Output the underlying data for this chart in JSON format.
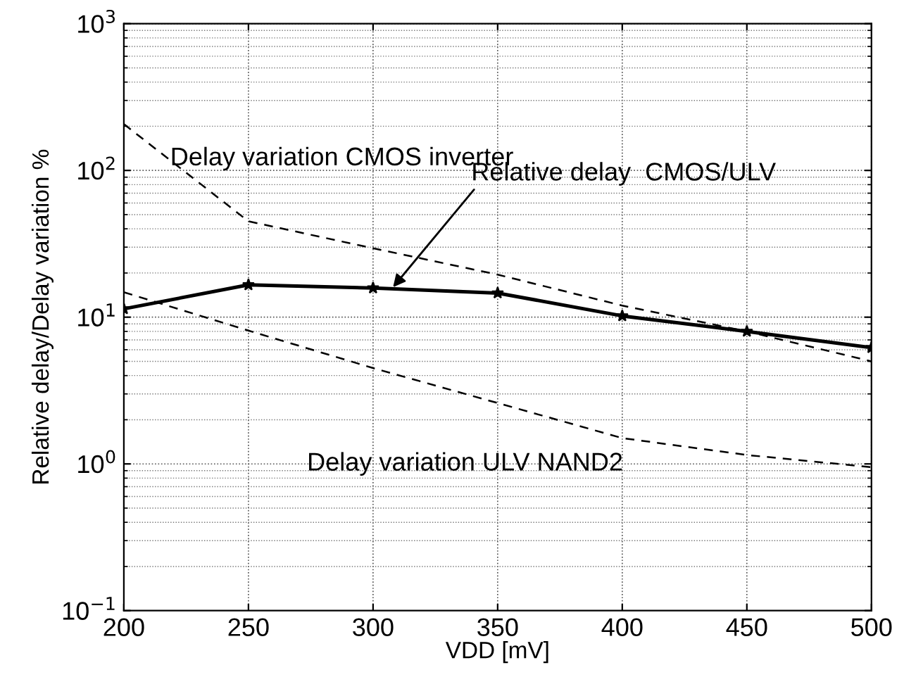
{
  "chart_data": {
    "type": "line",
    "xlabel": "VDD [mV]",
    "ylabel": "Relative delay/Delay variation %",
    "x": [
      200,
      250,
      300,
      350,
      400,
      450,
      500
    ],
    "series": [
      {
        "color": "#000000",
        "values": [
          11.4,
          16.6,
          15.8,
          14.6,
          10.2,
          8.0,
          6.2
        ],
        "marker": "star",
        "line_style": "solid"
      },
      {
        "color": "#000000",
        "values": [
          207,
          45,
          29.5,
          19.5,
          12,
          8,
          5.0
        ],
        "marker": "none",
        "line_style": "dashed"
      },
      {
        "color": "#000000",
        "values": [
          14.8,
          8.1,
          4.5,
          2.6,
          1.5,
          1.15,
          0.95
        ],
        "marker": "none",
        "line_style": "dashed"
      }
    ],
    "annotations": [
      "Delay variation CMOS inverter",
      {
        "text": "Relative delay  CMOS/ULV",
        "x": 308,
        "y": 16
      },
      "Delay variation ULV NAND2"
    ],
    "log": "y",
    "xlim": [
      200,
      500
    ],
    "ylim": [
      0.1,
      1000
    ],
    "xticks": [
      200,
      250,
      300,
      350,
      400,
      450,
      500
    ],
    "yticks": [
      {
        "value": 0.1,
        "label": "10$^{−1}$"
      },
      {
        "value": 1,
        "label": "10$^{0}$"
      },
      {
        "value": 10,
        "label": "10$^{1}$"
      },
      {
        "value": 100,
        "label": "10$^{2}$"
      },
      {
        "value": 1000,
        "label": "10$^{3}$"
      }
    ],
    "grid": true
  }
}
